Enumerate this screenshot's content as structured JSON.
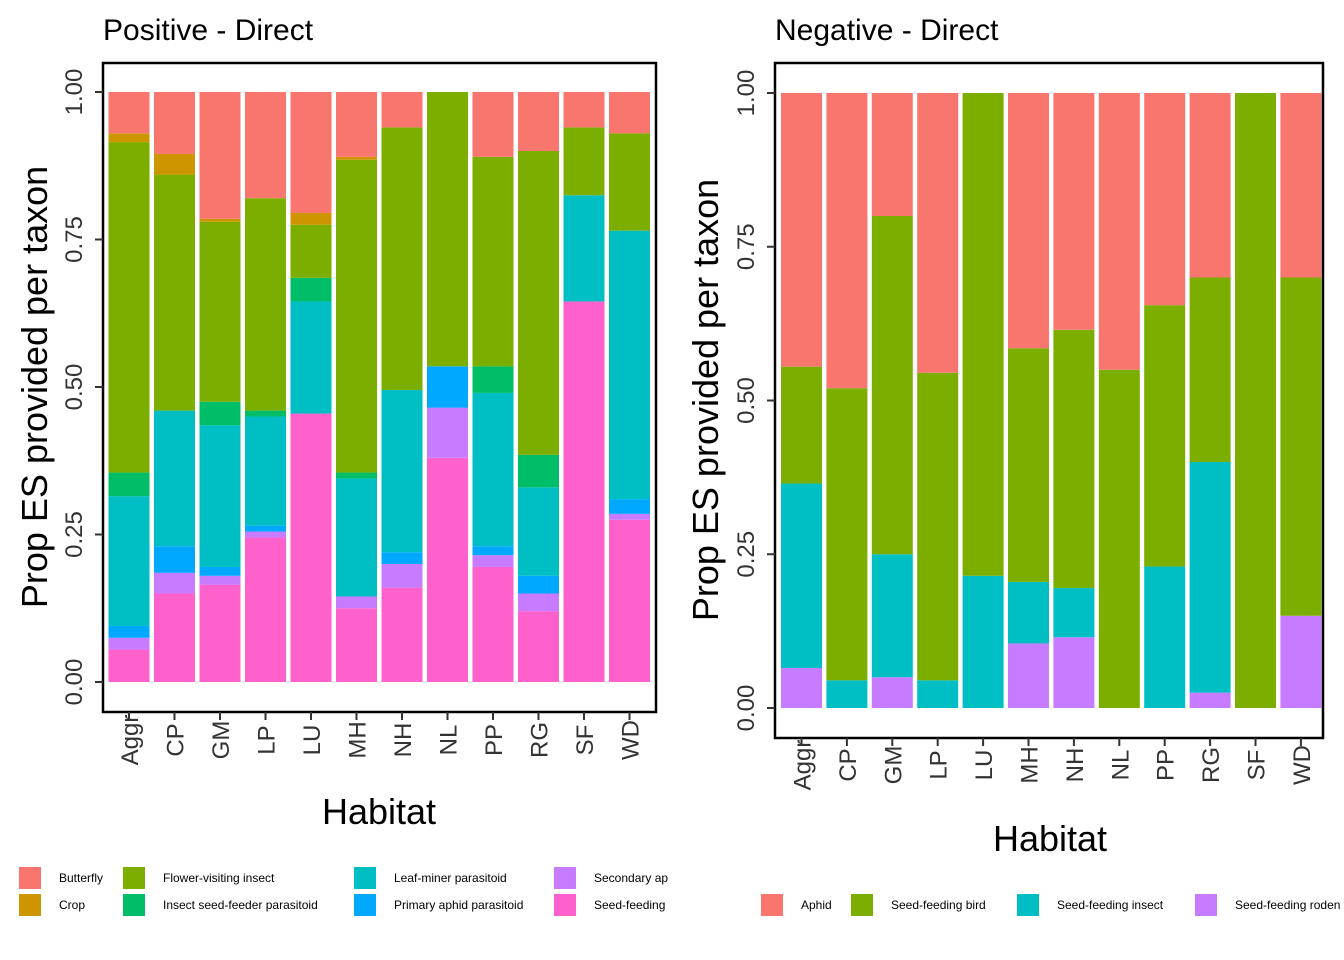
{
  "chart_data": [
    {
      "type": "bar",
      "stacked": true,
      "title": "Positive - Direct",
      "xlabel": "Habitat",
      "ylabel": "Prop ES provided per taxon",
      "ylim": [
        0,
        1
      ],
      "yticks": [
        "0.00",
        "0.25",
        "0.50",
        "0.75",
        "1.00"
      ],
      "grid": false,
      "legend_position": "bottom",
      "categories": [
        "Aggr",
        "CP",
        "GM",
        "LP",
        "LU",
        "MH",
        "NH",
        "NL",
        "PP",
        "RG",
        "SF",
        "WD"
      ],
      "series": [
        {
          "name": "Seed-feeding",
          "color": "#FF61CC",
          "values": [
            0.055,
            0.15,
            0.165,
            0.245,
            0.455,
            0.125,
            0.16,
            0.38,
            0.195,
            0.12,
            0.645,
            0.275
          ]
        },
        {
          "name": "Secondary ap",
          "color": "#C77CFF",
          "values": [
            0.02,
            0.035,
            0.015,
            0.01,
            0,
            0.02,
            0.04,
            0.085,
            0.02,
            0.03,
            0,
            0.01
          ]
        },
        {
          "name": "Primary aphid parasitoid",
          "color": "#00A9FF",
          "values": [
            0.02,
            0.045,
            0.015,
            0.01,
            0,
            0,
            0.02,
            0.07,
            0.015,
            0.03,
            0,
            0.025
          ]
        },
        {
          "name": "Leaf-miner parasitoid",
          "color": "#00BFC4",
          "values": [
            0.22,
            0.23,
            0.24,
            0.185,
            0.19,
            0.2,
            0.275,
            0,
            0.26,
            0.15,
            0.18,
            0.455
          ]
        },
        {
          "name": "Insect seed-feeder parasitoid",
          "color": "#00BE67",
          "values": [
            0.04,
            0,
            0.04,
            0.01,
            0.04,
            0.01,
            0,
            0,
            0.045,
            0.055,
            0,
            0
          ]
        },
        {
          "name": "Flower-visiting insect",
          "color": "#7CAE00",
          "values": [
            0.56,
            0.4,
            0.305,
            0.36,
            0.09,
            0.53,
            0.445,
            0.465,
            0.355,
            0.515,
            0.115,
            0.165
          ]
        },
        {
          "name": "Crop",
          "color": "#CD9600",
          "values": [
            0.015,
            0.035,
            0.005,
            0,
            0.02,
            0.005,
            0,
            0,
            0,
            0,
            0,
            0
          ]
        },
        {
          "name": "Butterfly",
          "color": "#F8766D",
          "values": [
            0.07,
            0.105,
            0.215,
            0.18,
            0.205,
            0.11,
            0.06,
            0,
            0.11,
            0.1,
            0.06,
            0.07
          ]
        }
      ],
      "legend": [
        {
          "name": "Butterfly",
          "color": "#F8766D"
        },
        {
          "name": "Crop",
          "color": "#CD9600"
        },
        {
          "name": "Flower-visiting insect",
          "color": "#7CAE00"
        },
        {
          "name": "Insect seed-feeder parasitoid",
          "color": "#00BE67"
        },
        {
          "name": "Leaf-miner parasitoid",
          "color": "#00BFC4"
        },
        {
          "name": "Primary aphid parasitoid",
          "color": "#00A9FF"
        },
        {
          "name": "Secondary ap",
          "color": "#C77CFF"
        },
        {
          "name": "Seed-feeding",
          "color": "#FF61CC"
        }
      ]
    },
    {
      "type": "bar",
      "stacked": true,
      "title": "Negative - Direct",
      "xlabel": "Habitat",
      "ylabel": "Prop ES provided per taxon",
      "ylim": [
        0,
        1
      ],
      "yticks": [
        "0.00",
        "0.25",
        "0.50",
        "0.75",
        "1.00"
      ],
      "grid": false,
      "legend_position": "bottom",
      "categories": [
        "Aggr",
        "CP",
        "GM",
        "LP",
        "LU",
        "MH",
        "NH",
        "NL",
        "PP",
        "RG",
        "SF",
        "WD"
      ],
      "series": [
        {
          "name": "Seed-feeding rodent",
          "color": "#C77CFF",
          "values": [
            0.065,
            0,
            0.05,
            0,
            0,
            0.105,
            0.115,
            0,
            0,
            0.025,
            0,
            0.15
          ]
        },
        {
          "name": "Seed-feeding insect",
          "color": "#00BFC4",
          "values": [
            0.3,
            0.045,
            0.2,
            0.045,
            0.215,
            0.1,
            0.08,
            0,
            0.23,
            0.375,
            0,
            0
          ]
        },
        {
          "name": "Seed-feeding bird",
          "color": "#7CAE00",
          "values": [
            0.19,
            0.475,
            0.55,
            0.5,
            0.785,
            0.38,
            0.42,
            0.55,
            0.425,
            0.3,
            1.0,
            0.55
          ]
        },
        {
          "name": "Aphid",
          "color": "#F8766D",
          "values": [
            0.445,
            0.48,
            0.2,
            0.455,
            0,
            0.415,
            0.385,
            0.45,
            0.345,
            0.3,
            0,
            0.3
          ]
        }
      ],
      "legend": [
        {
          "name": "Aphid",
          "color": "#F8766D"
        },
        {
          "name": "Seed-feeding bird",
          "color": "#7CAE00"
        },
        {
          "name": "Seed-feeding insect",
          "color": "#00BFC4"
        },
        {
          "name": "Seed-feeding roden",
          "color": "#C77CFF"
        }
      ]
    }
  ]
}
